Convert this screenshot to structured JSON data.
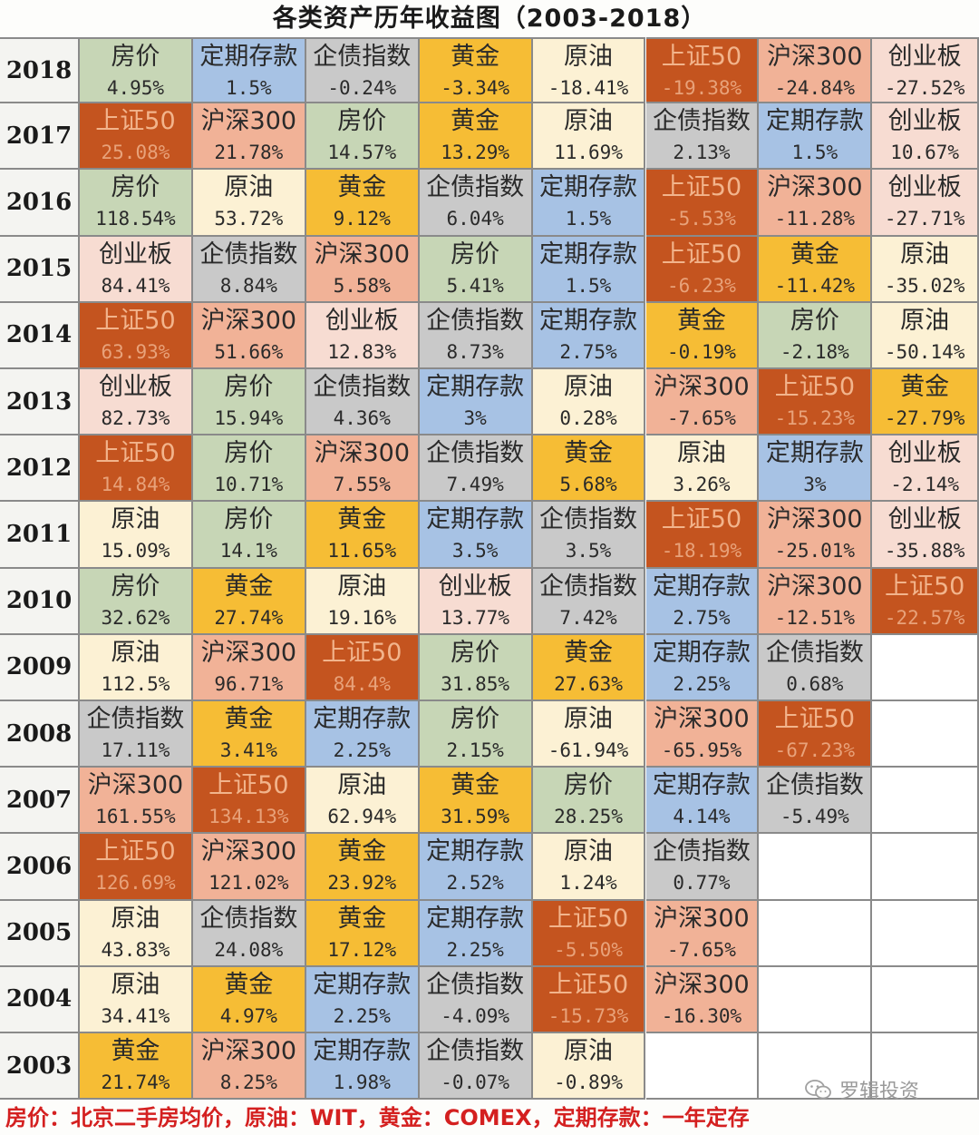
{
  "title": "各类资产历年收益图（2003-2018）",
  "footer": "房价：北京二手房均价，原油：WIT，黄金：COMEX，定期存款：一年定存",
  "watermark": "罗辑投资",
  "colors": {
    "房价": "#c7d6b6",
    "定期存款": "#a7c2e4",
    "企债指数": "#c9c9c9",
    "黄金": "#f6bd35",
    "原油": "#fcf1d4",
    "上证50": "#c4541f",
    "沪深300": "#f1b297",
    "创业板": "#f7dcd2"
  },
  "chart_data": {
    "type": "table",
    "title": "各类资产历年收益图（2003-2018）",
    "columns": 8,
    "rows": [
      {
        "year": "2018",
        "cells": [
          {
            "asset": "房价",
            "value": "4.95%"
          },
          {
            "asset": "定期存款",
            "value": "1.5%"
          },
          {
            "asset": "企债指数",
            "value": "-0.24%"
          },
          {
            "asset": "黄金",
            "value": "-3.34%"
          },
          {
            "asset": "原油",
            "value": "-18.41%"
          },
          {
            "asset": "上证50",
            "value": "-19.38%"
          },
          {
            "asset": "沪深300",
            "value": "-24.84%"
          },
          {
            "asset": "创业板",
            "value": "-27.52%"
          }
        ]
      },
      {
        "year": "2017",
        "cells": [
          {
            "asset": "上证50",
            "value": "25.08%"
          },
          {
            "asset": "沪深300",
            "value": "21.78%"
          },
          {
            "asset": "房价",
            "value": "14.57%"
          },
          {
            "asset": "黄金",
            "value": "13.29%"
          },
          {
            "asset": "原油",
            "value": "11.69%"
          },
          {
            "asset": "企债指数",
            "value": "2.13%"
          },
          {
            "asset": "定期存款",
            "value": "1.5%"
          },
          {
            "asset": "创业板",
            "value": "10.67%"
          }
        ]
      },
      {
        "year": "2016",
        "cells": [
          {
            "asset": "房价",
            "value": "118.54%"
          },
          {
            "asset": "原油",
            "value": "53.72%"
          },
          {
            "asset": "黄金",
            "value": "9.12%"
          },
          {
            "asset": "企债指数",
            "value": "6.04%"
          },
          {
            "asset": "定期存款",
            "value": "1.5%"
          },
          {
            "asset": "上证50",
            "value": "-5.53%"
          },
          {
            "asset": "沪深300",
            "value": "-11.28%"
          },
          {
            "asset": "创业板",
            "value": "-27.71%"
          }
        ]
      },
      {
        "year": "2015",
        "cells": [
          {
            "asset": "创业板",
            "value": "84.41%"
          },
          {
            "asset": "企债指数",
            "value": "8.84%"
          },
          {
            "asset": "沪深300",
            "value": "5.58%"
          },
          {
            "asset": "房价",
            "value": "5.41%"
          },
          {
            "asset": "定期存款",
            "value": "1.5%"
          },
          {
            "asset": "上证50",
            "value": "-6.23%"
          },
          {
            "asset": "黄金",
            "value": "-11.42%"
          },
          {
            "asset": "原油",
            "value": "-35.02%"
          }
        ]
      },
      {
        "year": "2014",
        "cells": [
          {
            "asset": "上证50",
            "value": "63.93%"
          },
          {
            "asset": "沪深300",
            "value": "51.66%"
          },
          {
            "asset": "创业板",
            "value": "12.83%"
          },
          {
            "asset": "企债指数",
            "value": "8.73%"
          },
          {
            "asset": "定期存款",
            "value": "2.75%"
          },
          {
            "asset": "黄金",
            "value": "-0.19%"
          },
          {
            "asset": "房价",
            "value": "-2.18%"
          },
          {
            "asset": "原油",
            "value": "-50.14%"
          }
        ]
      },
      {
        "year": "2013",
        "cells": [
          {
            "asset": "创业板",
            "value": "82.73%"
          },
          {
            "asset": "房价",
            "value": "15.94%"
          },
          {
            "asset": "企债指数",
            "value": "4.36%"
          },
          {
            "asset": "定期存款",
            "value": "3%"
          },
          {
            "asset": "原油",
            "value": "0.28%"
          },
          {
            "asset": "沪深300",
            "value": "-7.65%"
          },
          {
            "asset": "上证50",
            "value": "-15.23%"
          },
          {
            "asset": "黄金",
            "value": "-27.79%"
          }
        ]
      },
      {
        "year": "2012",
        "cells": [
          {
            "asset": "上证50",
            "value": "14.84%"
          },
          {
            "asset": "房价",
            "value": "10.71%"
          },
          {
            "asset": "沪深300",
            "value": "7.55%"
          },
          {
            "asset": "企债指数",
            "value": "7.49%"
          },
          {
            "asset": "黄金",
            "value": "5.68%"
          },
          {
            "asset": "原油",
            "value": "3.26%"
          },
          {
            "asset": "定期存款",
            "value": "3%"
          },
          {
            "asset": "创业板",
            "value": "-2.14%"
          }
        ]
      },
      {
        "year": "2011",
        "cells": [
          {
            "asset": "原油",
            "value": "15.09%"
          },
          {
            "asset": "房价",
            "value": "14.1%"
          },
          {
            "asset": "黄金",
            "value": "11.65%"
          },
          {
            "asset": "定期存款",
            "value": "3.5%"
          },
          {
            "asset": "企债指数",
            "value": "3.5%"
          },
          {
            "asset": "上证50",
            "value": "-18.19%"
          },
          {
            "asset": "沪深300",
            "value": "-25.01%"
          },
          {
            "asset": "创业板",
            "value": "-35.88%"
          }
        ]
      },
      {
        "year": "2010",
        "cells": [
          {
            "asset": "房价",
            "value": "32.62%"
          },
          {
            "asset": "黄金",
            "value": "27.74%"
          },
          {
            "asset": "原油",
            "value": "19.16%"
          },
          {
            "asset": "创业板",
            "value": "13.77%"
          },
          {
            "asset": "企债指数",
            "value": "7.42%"
          },
          {
            "asset": "定期存款",
            "value": "2.75%"
          },
          {
            "asset": "沪深300",
            "value": "-12.51%"
          },
          {
            "asset": "上证50",
            "value": "-22.57%"
          }
        ]
      },
      {
        "year": "2009",
        "cells": [
          {
            "asset": "原油",
            "value": "112.5%"
          },
          {
            "asset": "沪深300",
            "value": "96.71%"
          },
          {
            "asset": "上证50",
            "value": "84.4%"
          },
          {
            "asset": "房价",
            "value": "31.85%"
          },
          {
            "asset": "黄金",
            "value": "27.63%"
          },
          {
            "asset": "定期存款",
            "value": "2.25%"
          },
          {
            "asset": "企债指数",
            "value": "0.68%"
          }
        ]
      },
      {
        "year": "2008",
        "cells": [
          {
            "asset": "企债指数",
            "value": "17.11%"
          },
          {
            "asset": "黄金",
            "value": "3.41%"
          },
          {
            "asset": "定期存款",
            "value": "2.25%"
          },
          {
            "asset": "房价",
            "value": "2.15%"
          },
          {
            "asset": "原油",
            "value": "-61.94%"
          },
          {
            "asset": "沪深300",
            "value": "-65.95%"
          },
          {
            "asset": "上证50",
            "value": "-67.23%"
          }
        ]
      },
      {
        "year": "2007",
        "cells": [
          {
            "asset": "沪深300",
            "value": "161.55%"
          },
          {
            "asset": "上证50",
            "value": "134.13%"
          },
          {
            "asset": "原油",
            "value": "62.94%"
          },
          {
            "asset": "黄金",
            "value": "31.59%"
          },
          {
            "asset": "房价",
            "value": "28.25%"
          },
          {
            "asset": "定期存款",
            "value": "4.14%"
          },
          {
            "asset": "企债指数",
            "value": "-5.49%"
          }
        ]
      },
      {
        "year": "2006",
        "cells": [
          {
            "asset": "上证50",
            "value": "126.69%"
          },
          {
            "asset": "沪深300",
            "value": "121.02%"
          },
          {
            "asset": "黄金",
            "value": "23.92%"
          },
          {
            "asset": "定期存款",
            "value": "2.52%"
          },
          {
            "asset": "原油",
            "value": "1.24%"
          },
          {
            "asset": "企债指数",
            "value": "0.77%"
          }
        ]
      },
      {
        "year": "2005",
        "cells": [
          {
            "asset": "原油",
            "value": "43.83%"
          },
          {
            "asset": "企债指数",
            "value": "24.08%"
          },
          {
            "asset": "黄金",
            "value": "17.12%"
          },
          {
            "asset": "定期存款",
            "value": "2.25%"
          },
          {
            "asset": "上证50",
            "value": "-5.50%"
          },
          {
            "asset": "沪深300",
            "value": "-7.65%"
          }
        ]
      },
      {
        "year": "2004",
        "cells": [
          {
            "asset": "原油",
            "value": "34.41%"
          },
          {
            "asset": "黄金",
            "value": "4.97%"
          },
          {
            "asset": "定期存款",
            "value": "2.25%"
          },
          {
            "asset": "企债指数",
            "value": "-4.09%"
          },
          {
            "asset": "上证50",
            "value": "-15.73%"
          },
          {
            "asset": "沪深300",
            "value": "-16.30%"
          }
        ]
      },
      {
        "year": "2003",
        "cells": [
          {
            "asset": "黄金",
            "value": "21.74%"
          },
          {
            "asset": "沪深300",
            "value": "8.25%"
          },
          {
            "asset": "定期存款",
            "value": "1.98%"
          },
          {
            "asset": "企债指数",
            "value": "-0.07%"
          },
          {
            "asset": "原油",
            "value": "-0.89%"
          }
        ]
      }
    ]
  }
}
